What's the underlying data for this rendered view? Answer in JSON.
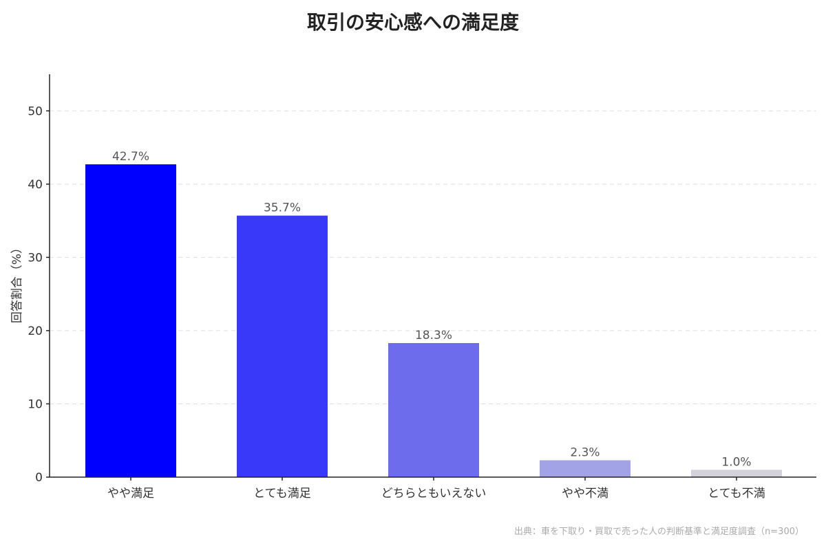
{
  "chart_data": {
    "type": "bar",
    "title": "取引の安心感への満足度",
    "ylabel": "回答割合（%）",
    "xlabel": "",
    "ylim": [
      0,
      55
    ],
    "yticks": [
      0,
      10,
      20,
      30,
      40,
      50
    ],
    "grid": true,
    "categories": [
      "やや満足",
      "とても満足",
      "どちらともいえない",
      "やや不満",
      "とても不満"
    ],
    "values": [
      42.7,
      35.7,
      18.3,
      2.3,
      1.0
    ],
    "value_labels": [
      "42.7%",
      "35.7%",
      "18.3%",
      "2.3%",
      "1.0%"
    ],
    "colors": [
      "#0000ff",
      "#3939fa",
      "#6c6ced",
      "#a2a2e6",
      "#d3d1d9"
    ],
    "source": "出典：車を下取り・買取で売った人の判断基準と満足度調査（n=300）"
  }
}
